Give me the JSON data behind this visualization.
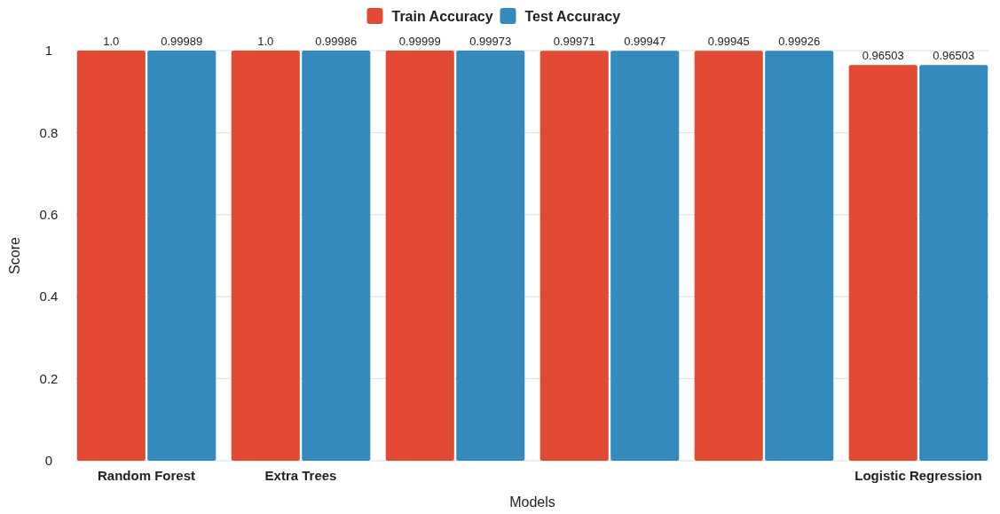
{
  "chart_data": {
    "type": "bar",
    "xlabel": "Models",
    "ylabel": "Score",
    "categories": [
      "Random Forest",
      "Extra Trees",
      null,
      null,
      null,
      "Logistic Regression"
    ],
    "series": [
      {
        "name": "Train Accuracy",
        "color": "#e24a33",
        "values": [
          1.0,
          1.0,
          0.99999,
          0.99971,
          0.99945,
          0.96503
        ],
        "value_labels": [
          "1.0",
          "1.0",
          "0.99999",
          "0.99971",
          "0.99945",
          "0.96503"
        ]
      },
      {
        "name": "Test Accuracy",
        "color": "#348abd",
        "values": [
          0.99989,
          0.99986,
          0.99973,
          0.99947,
          0.99926,
          0.96503
        ],
        "value_labels": [
          "0.99989",
          "0.99986",
          "0.99973",
          "0.99947",
          "0.99926",
          "0.96503"
        ]
      }
    ],
    "ylim": [
      0,
      1
    ],
    "yticks": [
      0,
      0.2,
      0.4,
      0.6,
      0.8,
      1
    ],
    "grid": "y",
    "legend": "top"
  }
}
